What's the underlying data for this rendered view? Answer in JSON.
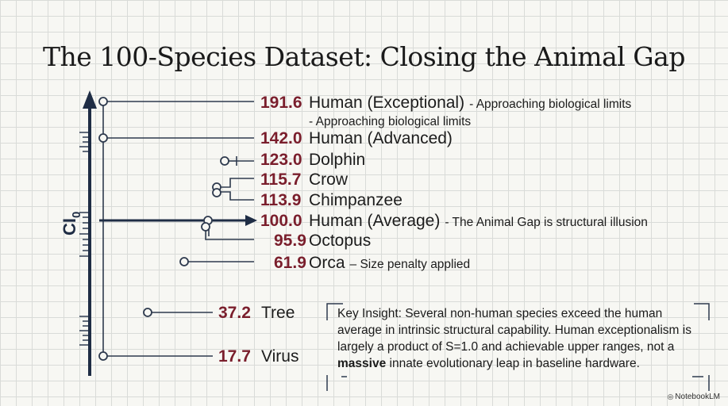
{
  "title": "The 100-Species Dataset: Closing the Animal Gap",
  "axis_label_main": "CI",
  "axis_label_sub": "0",
  "entries": [
    {
      "value": "191.6",
      "label": "Human (Exceptional)",
      "note": "- Approaching biological limits"
    },
    {
      "value": "142.0",
      "label": "Human (Advanced)",
      "note": ""
    },
    {
      "value": "123.0",
      "label": "Dolphin",
      "note": ""
    },
    {
      "value": "115.7",
      "label": "Crow",
      "note": ""
    },
    {
      "value": "113.9",
      "label": "Chimpanzee",
      "note": ""
    },
    {
      "value": "100.0",
      "label": "Human (Average)",
      "note": "- The Animal Gap is structural illusion"
    },
    {
      "value": "95.9",
      "label": "Octopus",
      "note": ""
    },
    {
      "value": "61.9",
      "label": "Orca",
      "note": "– Size penalty applied"
    },
    {
      "value": "37.2",
      "label": "Tree",
      "note": ""
    },
    {
      "value": "17.7",
      "label": "Virus",
      "note": ""
    }
  ],
  "repeated_note": "- Approaching biological limits",
  "insight": {
    "before_bold": "Key Insight: Several non-human species exceed the human average in intrinsic structural capability. Human exceptionalism is largely a product of S=1.0 and achievable upper ranges, not a",
    "bold": "massive",
    "after_bold": "innate evolutionary leap in baseline hardware."
  },
  "brand": "NotebookLM",
  "colors": {
    "value_text": "#7a1e2c",
    "axis": "#1f2d45",
    "connector": "#2e3a4e",
    "grid": "#d9dbd8",
    "background": "#f7f7f3"
  }
}
